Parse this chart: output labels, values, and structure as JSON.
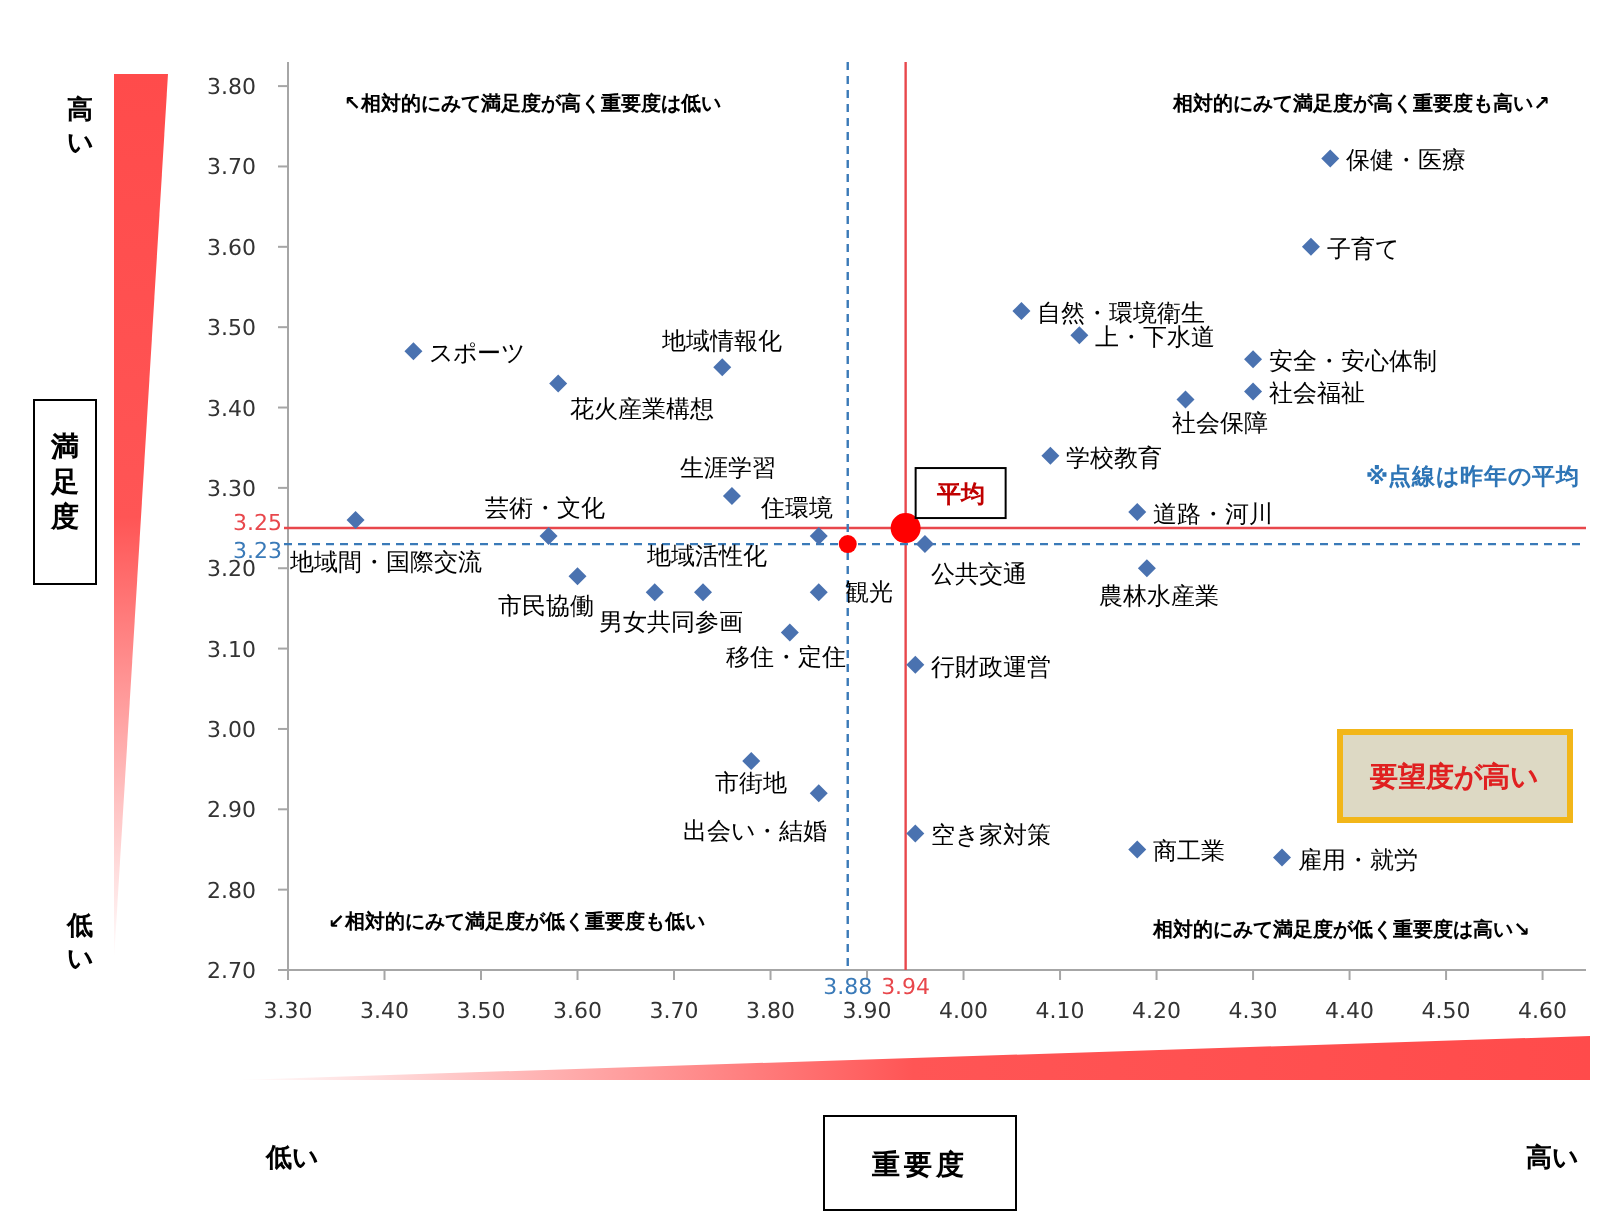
{
  "chart_data": {
    "type": "scatter",
    "xlabel": "重要度",
    "ylabel": "満足度",
    "marker": "diamond",
    "legend": false,
    "grid": false,
    "xlim": [
      3.3,
      4.645
    ],
    "ylim": [
      2.7,
      3.83
    ],
    "xticks": [
      {
        "value": 3.3,
        "label": "3.30"
      },
      {
        "value": 3.4,
        "label": "3.40"
      },
      {
        "value": 3.5,
        "label": "3.50"
      },
      {
        "value": 3.6,
        "label": "3.60"
      },
      {
        "value": 3.7,
        "label": "3.70"
      },
      {
        "value": 3.8,
        "label": "3.80"
      },
      {
        "value": 3.9,
        "label": "3.90"
      },
      {
        "value": 4.0,
        "label": "4.00"
      },
      {
        "value": 4.1,
        "label": "4.10"
      },
      {
        "value": 4.2,
        "label": "4.20"
      },
      {
        "value": 4.3,
        "label": "4.30"
      },
      {
        "value": 4.4,
        "label": "4.40"
      },
      {
        "value": 4.5,
        "label": "4.50"
      },
      {
        "value": 4.6,
        "label": "4.60"
      }
    ],
    "yticks": [
      {
        "value": 2.7,
        "label": "2.70"
      },
      {
        "value": 2.8,
        "label": "2.80"
      },
      {
        "value": 2.9,
        "label": "2.90"
      },
      {
        "value": 3.0,
        "label": "3.00"
      },
      {
        "value": 3.1,
        "label": "3.10"
      },
      {
        "value": 3.2,
        "label": "3.20"
      },
      {
        "value": 3.3,
        "label": "3.30"
      },
      {
        "value": 3.4,
        "label": "3.40"
      },
      {
        "value": 3.5,
        "label": "3.50"
      },
      {
        "value": 3.6,
        "label": "3.60"
      },
      {
        "value": 3.7,
        "label": "3.70"
      },
      {
        "value": 3.8,
        "label": "3.80"
      }
    ],
    "series": [
      {
        "name": "スポーツ",
        "color": "#4a72b0",
        "x": [
          3.43
        ],
        "values": [
          3.47
        ]
      },
      {
        "name": "花火産業構想",
        "color": "#4a72b0",
        "x": [
          3.58
        ],
        "values": [
          3.43
        ]
      },
      {
        "name": "地域情報化",
        "color": "#4a72b0",
        "x": [
          3.75
        ],
        "values": [
          3.45
        ]
      },
      {
        "name": "生涯学習",
        "color": "#4a72b0",
        "x": [
          3.76
        ],
        "values": [
          3.29
        ]
      },
      {
        "name": "芸術・文化",
        "color": "#4a72b0",
        "x": [
          3.57
        ],
        "values": [
          3.24
        ]
      },
      {
        "name": "地域間・国際交流",
        "color": "#4a72b0",
        "x": [
          3.37
        ],
        "values": [
          3.26
        ]
      },
      {
        "name": "住環境",
        "color": "#4a72b0",
        "x": [
          3.85
        ],
        "values": [
          3.24
        ]
      },
      {
        "name": "市民協働",
        "color": "#4a72b0",
        "x": [
          3.6
        ],
        "values": [
          3.19
        ]
      },
      {
        "name": "男女共同参画",
        "color": "#4a72b0",
        "x": [
          3.68
        ],
        "values": [
          3.17
        ]
      },
      {
        "name": "地域活性化",
        "color": "#4a72b0",
        "x": [
          3.73
        ],
        "values": [
          3.17
        ]
      },
      {
        "name": "観光",
        "color": "#4a72b0",
        "x": [
          3.85
        ],
        "values": [
          3.17
        ]
      },
      {
        "name": "移住・定住",
        "color": "#4a72b0",
        "x": [
          3.82
        ],
        "values": [
          3.12
        ]
      },
      {
        "name": "市街地",
        "color": "#4a72b0",
        "x": [
          3.78
        ],
        "values": [
          2.96
        ]
      },
      {
        "name": "出会い・結婚",
        "color": "#4a72b0",
        "x": [
          3.85
        ],
        "values": [
          2.92
        ]
      },
      {
        "name": "行財政運営",
        "color": "#4a72b0",
        "x": [
          3.95
        ],
        "values": [
          3.08
        ]
      },
      {
        "name": "空き家対策",
        "color": "#4a72b0",
        "x": [
          3.95
        ],
        "values": [
          2.87
        ]
      },
      {
        "name": "公共交通",
        "color": "#4a72b0",
        "x": [
          3.96
        ],
        "values": [
          3.23
        ]
      },
      {
        "name": "道路・河川",
        "color": "#4a72b0",
        "x": [
          4.18
        ],
        "values": [
          3.27
        ]
      },
      {
        "name": "農林水産業",
        "color": "#4a72b0",
        "x": [
          4.19
        ],
        "values": [
          3.2
        ]
      },
      {
        "name": "商工業",
        "color": "#4a72b0",
        "x": [
          4.18
        ],
        "values": [
          2.85
        ]
      },
      {
        "name": "雇用・就労",
        "color": "#4a72b0",
        "x": [
          4.33
        ],
        "values": [
          2.84
        ]
      },
      {
        "name": "保健・医療",
        "color": "#4a72b0",
        "x": [
          4.38
        ],
        "values": [
          3.71
        ]
      },
      {
        "name": "子育て",
        "color": "#4a72b0",
        "x": [
          4.36
        ],
        "values": [
          3.6
        ]
      },
      {
        "name": "自然・環境衛生",
        "color": "#4a72b0",
        "x": [
          4.06
        ],
        "values": [
          3.52
        ]
      },
      {
        "name": "上・下水道",
        "color": "#4a72b0",
        "x": [
          4.12
        ],
        "values": [
          3.49
        ]
      },
      {
        "name": "安全・安心体制",
        "color": "#4a72b0",
        "x": [
          4.3
        ],
        "values": [
          3.46
        ]
      },
      {
        "name": "社会福祉",
        "color": "#4a72b0",
        "x": [
          4.3
        ],
        "values": [
          3.42
        ]
      },
      {
        "name": "社会保障",
        "color": "#4a72b0",
        "x": [
          4.23
        ],
        "values": [
          3.41
        ]
      },
      {
        "name": "学校教育",
        "color": "#4a72b0",
        "x": [
          4.09
        ],
        "values": [
          3.34
        ]
      },
      {
        "color": "#ff0000",
        "marker": "circle",
        "x": [
          3.88
        ],
        "values": [
          3.23
        ]
      },
      {
        "name": "平均",
        "color": "#ff0000",
        "marker": "circle",
        "x": [
          3.94
        ],
        "values": [
          3.25
        ]
      }
    ],
    "ref_lines": [
      {
        "axis": "x",
        "value": 3.94,
        "label": "3.94",
        "color": "#e8474c",
        "line_style": "solid"
      },
      {
        "axis": "y",
        "value": 3.25,
        "label": "3.25",
        "color": "#e8474c",
        "line_style": "solid"
      },
      {
        "axis": "x",
        "value": 3.88,
        "label": "3.88",
        "color": "#3a7ab8",
        "line_style": "dashed"
      },
      {
        "axis": "y",
        "value": 3.23,
        "label": "3.23",
        "color": "#3a7ab8",
        "line_style": "dashed"
      }
    ],
    "annotations": [
      "↖相対的にみて満足度が高く重要度は低い",
      "相対的にみて満足度が高く重要度も高い↗",
      "↙相対的にみて満足度が低く重要度も低い",
      "相対的にみて満足度が低く重要度は高い↘",
      "※点線は昨年の平均",
      "要望度が高い",
      "高い",
      "低い",
      "低い",
      "高い"
    ]
  }
}
